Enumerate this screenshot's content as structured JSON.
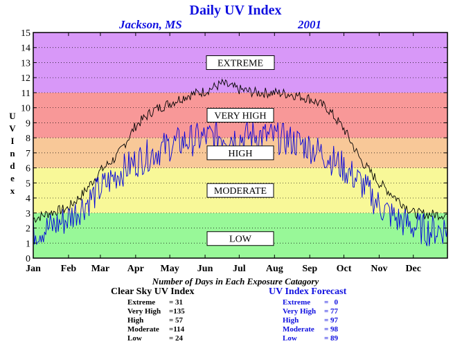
{
  "title": "Daily UV Index",
  "subtitle_location": "Jackson, MS",
  "subtitle_year": "2001",
  "chart_data": {
    "type": "line",
    "ylabel": "UV Index",
    "ylim": [
      0,
      15
    ],
    "yticks": [
      0,
      1,
      2,
      3,
      4,
      5,
      6,
      7,
      8,
      9,
      10,
      11,
      12,
      13,
      14,
      15
    ],
    "months": [
      "Jan",
      "Feb",
      "Mar",
      "Apr",
      "May",
      "Jun",
      "Jul",
      "Aug",
      "Sep",
      "Oct",
      "Nov",
      "Dec"
    ],
    "grid": true,
    "bands": [
      {
        "name": "LOW",
        "from": 0,
        "to": 3,
        "color": "#98f898"
      },
      {
        "name": "MODERATE",
        "from": 3,
        "to": 6,
        "color": "#f8f898"
      },
      {
        "name": "HIGH",
        "from": 6,
        "to": 8,
        "color": "#f8c898"
      },
      {
        "name": "VERY HIGH",
        "from": 8,
        "to": 11,
        "color": "#f89898"
      },
      {
        "name": "EXTREME",
        "from": 11,
        "to": 15,
        "color": "#d898f8"
      }
    ],
    "series": [
      {
        "name": "Clear Sky UV Index",
        "color": "#000000",
        "x": [
          1,
          15,
          31,
          45,
          60,
          75,
          91,
          106,
          121,
          136,
          152,
          167,
          182,
          197,
          213,
          228,
          244,
          259,
          274,
          289,
          305,
          320,
          335,
          350,
          365
        ],
        "y": [
          2.6,
          3.0,
          3.3,
          4.3,
          5.8,
          6.8,
          8.8,
          9.8,
          10.3,
          10.8,
          11.1,
          11.6,
          11.2,
          11.0,
          11.0,
          10.9,
          10.6,
          10.0,
          8.6,
          6.5,
          5.0,
          4.0,
          3.0,
          2.9,
          2.9
        ]
      },
      {
        "name": "UV Index Forecast",
        "color": "#0000dd",
        "x": [
          1,
          15,
          31,
          45,
          60,
          75,
          91,
          106,
          121,
          136,
          152,
          167,
          182,
          197,
          213,
          228,
          244,
          259,
          274,
          289,
          305,
          320,
          335,
          350,
          365
        ],
        "y": [
          1.8,
          2.0,
          2.6,
          3.5,
          4.6,
          5.6,
          6.4,
          7.0,
          7.5,
          7.8,
          8.0,
          8.2,
          8.0,
          8.2,
          8.0,
          7.8,
          7.4,
          6.8,
          6.0,
          5.0,
          3.5,
          2.6,
          2.1,
          1.8,
          2.0
        ]
      }
    ]
  },
  "category_title": "Number of Days in Each Exposure Catagory",
  "clear_sky": {
    "header": "Clear Sky UV Index",
    "rows": [
      {
        "label": "Extreme",
        "value": "= 31"
      },
      {
        "label": "Very High",
        "value": "=135"
      },
      {
        "label": "High",
        "value": "= 57"
      },
      {
        "label": "Moderate",
        "value": "=114"
      },
      {
        "label": "Low",
        "value": "= 24"
      }
    ]
  },
  "forecast": {
    "header": "UV Index Forecast",
    "rows": [
      {
        "label": "Extreme",
        "value": "=   0"
      },
      {
        "label": "Very High",
        "value": "= 77"
      },
      {
        "label": "High",
        "value": "= 97"
      },
      {
        "label": "Moderate",
        "value": "= 98"
      },
      {
        "label": "Low",
        "value": "= 89"
      }
    ]
  }
}
